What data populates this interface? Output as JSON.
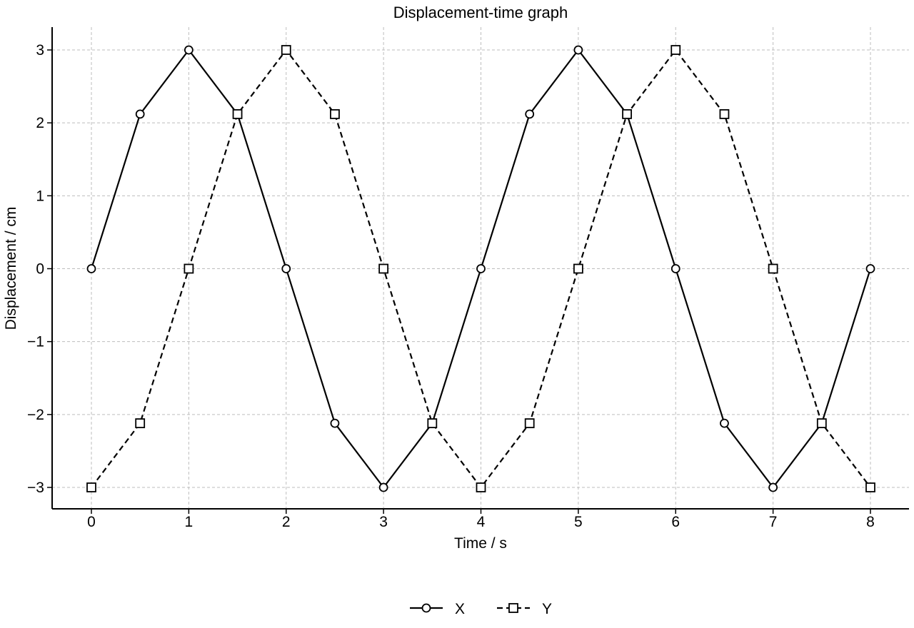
{
  "chart_data": {
    "type": "line",
    "title": "Displacement-time graph",
    "xlabel": "Time / s",
    "ylabel": "Displacement / cm",
    "xlim": [
      -0.4,
      8.4
    ],
    "ylim": [
      -3.3,
      3.3
    ],
    "xticks": [
      0,
      1,
      2,
      3,
      4,
      5,
      6,
      7,
      8
    ],
    "yticks": [
      3,
      2,
      1,
      0,
      -1,
      -2,
      -3
    ],
    "xtick_labels": [
      "0",
      "1",
      "2",
      "3",
      "4",
      "5",
      "6",
      "7",
      "8"
    ],
    "ytick_labels": [
      "3",
      "2",
      "1",
      "0",
      "−1",
      "−2",
      "−3"
    ],
    "grid": true,
    "legend_position": "bottom-center",
    "x": [
      0,
      0.5,
      1,
      1.5,
      2,
      2.5,
      3,
      3.5,
      4,
      4.5,
      5,
      5.5,
      6,
      6.5,
      7,
      7.5,
      8
    ],
    "series": [
      {
        "name": "X",
        "marker": "circle",
        "line_style": "solid",
        "color": "#000000",
        "values": [
          0,
          2.12,
          3,
          2.12,
          0,
          -2.12,
          -3,
          -2.12,
          0,
          2.12,
          3,
          2.12,
          0,
          -2.12,
          -3,
          -2.12,
          0
        ]
      },
      {
        "name": "Y",
        "marker": "square",
        "line_style": "dashed",
        "color": "#000000",
        "values": [
          -3,
          -2.12,
          0,
          2.12,
          3,
          2.12,
          0,
          -2.12,
          -3,
          -2.12,
          0,
          2.12,
          3,
          2.12,
          0,
          -2.12,
          -3
        ]
      }
    ]
  }
}
